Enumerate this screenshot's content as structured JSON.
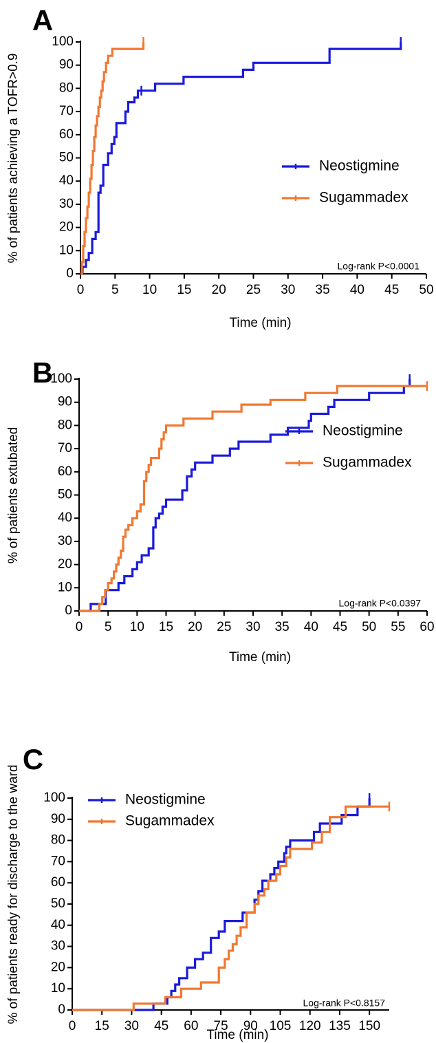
{
  "chart_data": [
    {
      "panel": "A",
      "type": "line",
      "step": true,
      "xlabel": "Time (min)",
      "ylabel": "% of patients achieving a TOFR>0.9",
      "xlim": [
        0,
        50
      ],
      "ylim": [
        0,
        100
      ],
      "xticks": [
        0,
        5,
        10,
        15,
        20,
        25,
        30,
        35,
        40,
        45,
        50
      ],
      "yticks": [
        0,
        10,
        20,
        30,
        40,
        50,
        60,
        70,
        80,
        90,
        100
      ],
      "annotation": "Log-rank P<0.0001",
      "legend_position": "middle-right",
      "series": [
        {
          "name": "Neostigmine",
          "color": "#1a1adb",
          "x": [
            0.3,
            0.8,
            1.2,
            1.7,
            2.2,
            2.6,
            2.9,
            3.3,
            4.0,
            4.5,
            4.9,
            5.2,
            6.5,
            6.9,
            7.8,
            8.3,
            8.8,
            10.8,
            14.9,
            23.5,
            25.0,
            36.0,
            46.3
          ],
          "y": [
            3,
            6,
            9,
            15,
            18,
            35,
            38,
            47,
            52,
            56,
            59,
            65,
            70,
            74,
            76,
            79,
            79,
            82,
            85,
            88,
            91,
            97,
            100
          ],
          "censored": [
            8.8,
            46.3
          ]
        },
        {
          "name": "Sugammadex",
          "color": "#f07830",
          "x": [
            0.2,
            0.4,
            0.6,
            0.8,
            1.0,
            1.2,
            1.4,
            1.6,
            1.8,
            2.0,
            2.2,
            2.4,
            2.6,
            2.8,
            3.0,
            3.2,
            3.4,
            3.7,
            4.0,
            4.3,
            4.6,
            5.0,
            9.1
          ],
          "y": [
            5,
            12,
            18,
            24,
            29,
            35,
            41,
            47,
            53,
            59,
            64,
            68,
            72,
            76,
            79,
            83,
            87,
            91,
            94,
            94,
            97,
            97,
            100
          ],
          "censored": [
            9.1
          ]
        }
      ]
    },
    {
      "panel": "B",
      "type": "line",
      "step": true,
      "xlabel": "Time (min)",
      "ylabel": "% of patients extubated",
      "xlim": [
        0,
        60
      ],
      "ylim": [
        0,
        100
      ],
      "xticks": [
        0,
        5,
        10,
        15,
        20,
        25,
        30,
        35,
        40,
        45,
        50,
        55,
        60
      ],
      "yticks": [
        0,
        10,
        20,
        30,
        40,
        50,
        60,
        70,
        80,
        90,
        100
      ],
      "annotation": "Log-rank P<0.0397",
      "legend_position": "middle-right",
      "series": [
        {
          "name": "Neostigmine",
          "color": "#1a1adb",
          "x": [
            2.0,
            4.6,
            6.8,
            7.8,
            9.2,
            10.0,
            10.8,
            12.0,
            12.8,
            13.2,
            13.8,
            14.4,
            15.0,
            17.8,
            18.6,
            19.4,
            20.0,
            23.0,
            26.0,
            27.5,
            33.0,
            36.0,
            39.6,
            40.0,
            43.0,
            44.0,
            50.0,
            56.0,
            57.0
          ],
          "y": [
            3,
            9,
            12,
            15,
            18,
            21,
            24,
            27,
            36,
            40,
            42,
            45,
            48,
            52,
            58,
            61,
            64,
            67,
            70,
            73,
            76,
            79,
            82,
            85,
            88,
            91,
            94,
            97,
            100
          ],
          "censored": [
            57.0
          ]
        },
        {
          "name": "Sugammadex",
          "color": "#f07830",
          "x": [
            3.5,
            4.0,
            4.5,
            5.0,
            5.6,
            6.0,
            6.4,
            6.8,
            7.2,
            7.6,
            8.0,
            8.5,
            9.2,
            10.0,
            10.6,
            11.2,
            11.6,
            12.0,
            12.4,
            13.8,
            14.2,
            14.6,
            15.0,
            18.0,
            23.0,
            28.0,
            33.0,
            39.0,
            44.5
          ],
          "y": [
            3,
            6,
            9,
            12,
            14,
            17,
            20,
            23,
            26,
            32,
            35,
            37,
            40,
            43,
            46,
            56,
            60,
            63,
            66,
            70,
            74,
            77,
            80,
            83,
            86,
            89,
            91,
            94,
            97
          ],
          "censored": [
            60.0
          ]
        }
      ]
    },
    {
      "panel": "C",
      "type": "line",
      "step": true,
      "xlabel": "Time (min)",
      "ylabel": "% of patients ready for discharge to the ward",
      "xlim": [
        0,
        160
      ],
      "ylim": [
        0,
        100
      ],
      "xticks": [
        0,
        15,
        30,
        45,
        60,
        75,
        90,
        105,
        120,
        135,
        150
      ],
      "yticks": [
        0,
        10,
        20,
        30,
        40,
        50,
        60,
        70,
        80,
        90,
        100
      ],
      "annotation": "Log-rank P<0.8157",
      "legend_position": "top-left",
      "series": [
        {
          "name": "Neostigmine",
          "color": "#1a1adb",
          "x": [
            41,
            48,
            50,
            52,
            54,
            58,
            62,
            66,
            70,
            74,
            77,
            86,
            92,
            94,
            96,
            100,
            102,
            104,
            107,
            108,
            110,
            122,
            125,
            128,
            136,
            144,
            150
          ],
          "y": [
            3,
            6,
            9,
            12,
            15,
            20,
            24,
            27,
            34,
            37,
            42,
            46,
            52,
            56,
            61,
            64,
            67,
            70,
            74,
            77,
            80,
            84,
            88,
            88,
            92,
            96,
            100
          ],
          "censored": [
            150
          ]
        },
        {
          "name": "Sugammadex",
          "color": "#f07830",
          "x": [
            31,
            47,
            55,
            65,
            74,
            77,
            79,
            81,
            83,
            85,
            88,
            92,
            94,
            97,
            99,
            103,
            105,
            108,
            110,
            121,
            126,
            130,
            138
          ],
          "y": [
            3,
            6,
            10,
            13,
            20,
            24,
            28,
            31,
            35,
            39,
            46,
            50,
            54,
            57,
            61,
            64,
            68,
            72,
            76,
            79,
            84,
            91,
            96
          ],
          "censored": [
            160
          ]
        }
      ]
    }
  ]
}
